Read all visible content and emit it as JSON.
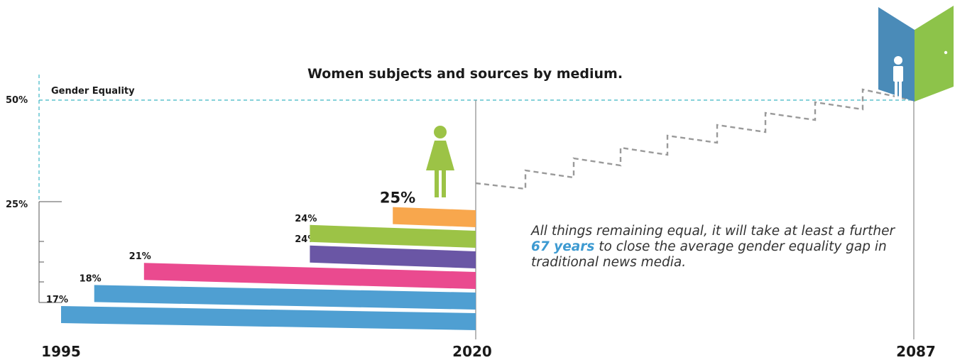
{
  "colors": {
    "blue": "#4f9fd2",
    "pink": "#ea4a8f",
    "purple": "#6a56a5",
    "green": "#9cc346",
    "orange": "#f8a74d",
    "guide": "#3cb6c4",
    "stairs": "#9a9a9a",
    "door_blue": "#4a8bb8",
    "door_green": "#8dc34a"
  },
  "chart_data": {
    "type": "bar",
    "title": "Women subjects and sources by medium.",
    "y_ticks": [
      "50%",
      "25%"
    ],
    "reference_line": {
      "label": "Gender Equality",
      "value": 50
    },
    "x_labels": [
      "1995",
      "2020",
      "2087"
    ],
    "bars": [
      {
        "start_year": 1995,
        "end_year": 2020,
        "value": 17,
        "label": "17%",
        "color": "#4f9fd2"
      },
      {
        "start_year": 1997,
        "end_year": 2020,
        "value": 18,
        "label": "18%",
        "color": "#4f9fd2"
      },
      {
        "start_year": 2000,
        "end_year": 2020,
        "value": 21,
        "label": "21%",
        "color": "#ea4a8f"
      },
      {
        "start_year": 2010,
        "end_year": 2020,
        "value": 24,
        "label": "24%",
        "color": "#6a56a5"
      },
      {
        "start_year": 2010,
        "end_year": 2020,
        "value": 24,
        "label": "24%",
        "color": "#9cc346"
      },
      {
        "start_year": 2015,
        "end_year": 2020,
        "value": 25,
        "label": "25%",
        "color": "#f8a74d"
      }
    ],
    "projection": {
      "from_year": 2020,
      "to_year": 2087,
      "from_value": 25,
      "to_value": 50
    }
  },
  "note": {
    "before": "All things remaining equal, it will take at least a further ",
    "highlight": "67 years",
    "after": " to close the average gender equality gap in traditional news media."
  }
}
